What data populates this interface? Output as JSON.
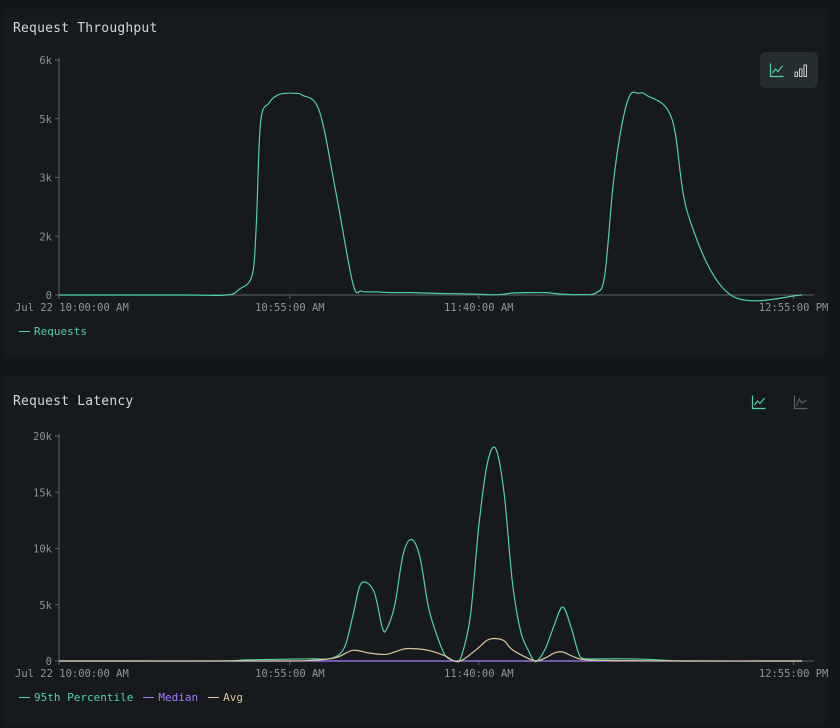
{
  "charts": [
    {
      "title": "Request Throughput",
      "chart_data": {
        "type": "line",
        "x_ticks": [
          "Jul 22 10:00:00 AM",
          "10:55:00 AM",
          "11:40:00 AM",
          "12:55:00 PM"
        ],
        "x_tick_minutes": [
          0,
          55,
          100,
          175
        ],
        "xlim_minutes": [
          0,
          177
        ],
        "y_ticks": [
          "0",
          "2k",
          "3k",
          "5k",
          "6k"
        ],
        "ylim": [
          0,
          6000
        ],
        "series": [
          {
            "name": "Requests",
            "color": "#4fd1a5",
            "x": [
              0,
              30,
              40,
              43,
              46,
              47,
              48,
              50,
              52,
              54,
              56,
              58,
              62,
              66,
              70,
              72,
              74,
              76,
              77,
              80,
              84,
              90,
              96,
              100,
              102,
              104,
              106,
              108,
              112,
              116,
              118,
              120,
              124,
              128,
              130,
              132,
              134,
              136,
              138,
              140,
              146,
              150,
              160,
              177
            ],
            "y": [
              0,
              0,
              0,
              150,
              500,
              1800,
              4400,
              4900,
              5100,
              5150,
              5150,
              5100,
              4700,
              2600,
              300,
              100,
              80,
              80,
              70,
              60,
              60,
              40,
              30,
              20,
              10,
              5,
              20,
              50,
              60,
              60,
              40,
              20,
              10,
              60,
              500,
              2800,
              4300,
              5100,
              5150,
              5100,
              4500,
              2000,
              0,
              0
            ]
          }
        ]
      }
    },
    {
      "title": "Request Latency",
      "chart_data": {
        "type": "line",
        "x_ticks": [
          "Jul 22 10:00:00 AM",
          "10:55:00 AM",
          "11:40:00 AM",
          "12:55:00 PM"
        ],
        "x_tick_minutes": [
          0,
          55,
          100,
          175
        ],
        "xlim_minutes": [
          0,
          177
        ],
        "y_ticks": [
          "0",
          "5k",
          "10k",
          "15k",
          "20k"
        ],
        "ylim": [
          0,
          20000
        ],
        "series": [
          {
            "name": "95th Percentile",
            "color": "#4fd1a5",
            "x": [
              0,
              30,
              40,
              45,
              52,
              60,
              65,
              68,
              70,
              72,
              75,
              77,
              78,
              80,
              82,
              84,
              86,
              88,
              90,
              92,
              94,
              95,
              96,
              98,
              100,
              102,
              104,
              106,
              108,
              110,
              112,
              113,
              114,
              116,
              118,
              120,
              122,
              124,
              126,
              128,
              130,
              132,
              134,
              140,
              146,
              150,
              177
            ],
            "y": [
              0,
              0,
              20,
              100,
              150,
              200,
              250,
              1200,
              4000,
              6900,
              6200,
              3000,
              2800,
              5000,
              9500,
              10800,
              9200,
              4800,
              2300,
              500,
              30,
              20,
              600,
              4000,
              12000,
              17500,
              18900,
              15000,
              7000,
              2600,
              800,
              100,
              20,
              1200,
              3200,
              4800,
              3000,
              500,
              200,
              200,
              200,
              200,
              200,
              150,
              30,
              0,
              0
            ]
          },
          {
            "name": "Median",
            "color": "#a57cff",
            "x": [
              0,
              177
            ],
            "y": [
              0,
              0
            ]
          },
          {
            "name": "Avg",
            "color": "#d9c6a0",
            "x": [
              0,
              50,
              60,
              66,
              70,
              74,
              78,
              82,
              84,
              88,
              92,
              94,
              96,
              100,
              102,
              104,
              106,
              108,
              112,
              114,
              116,
              118,
              120,
              124,
              130,
              150,
              177
            ],
            "y": [
              0,
              0,
              50,
              300,
              950,
              700,
              600,
              1050,
              1100,
              950,
              450,
              20,
              60,
              1200,
              1850,
              2000,
              1800,
              1000,
              200,
              20,
              300,
              700,
              800,
              200,
              50,
              0,
              0
            ]
          }
        ]
      }
    }
  ]
}
